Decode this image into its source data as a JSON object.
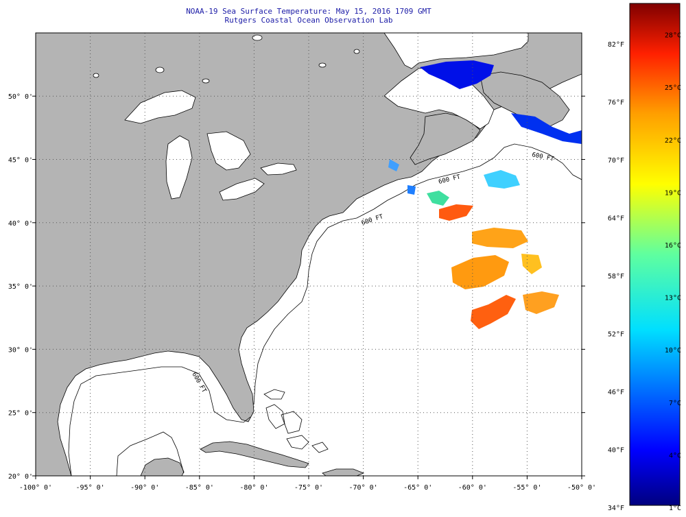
{
  "header": {
    "title_line1": "NOAA-19 Sea Surface Temperature:  May 15, 2016 1709 GMT",
    "title_line2": "Rutgers Coastal Ocean Observation Lab"
  },
  "map": {
    "longitude_ticks": [
      "-100° 0'",
      "-95° 0'",
      "-90° 0'",
      "-85° 0'",
      "-80° 0'",
      "-75° 0'",
      "-70° 0'",
      "-65° 0'",
      "-60° 0'",
      "-55° 0'",
      "-50° 0'"
    ],
    "latitude_ticks": [
      "20° 0'",
      "25° 0'",
      "30° 0'",
      "35° 0'",
      "40° 0'",
      "45° 0'",
      "50° 0'"
    ],
    "isobath_label": "600 FT",
    "colors": {
      "land": "#b4b4b4",
      "ocean": "#ffffff",
      "grid": "#555555",
      "title": "#1a1aa6"
    }
  },
  "colorbar": {
    "fahrenheit_labels": [
      "34°F",
      "40°F",
      "46°F",
      "52°F",
      "58°F",
      "64°F",
      "70°F",
      "76°F",
      "82°F"
    ],
    "celsius_labels": [
      "1°C",
      "4°C",
      "7°C",
      "10°C",
      "13°C",
      "16°C",
      "19°C",
      "22°C",
      "25°C",
      "28°C"
    ]
  }
}
